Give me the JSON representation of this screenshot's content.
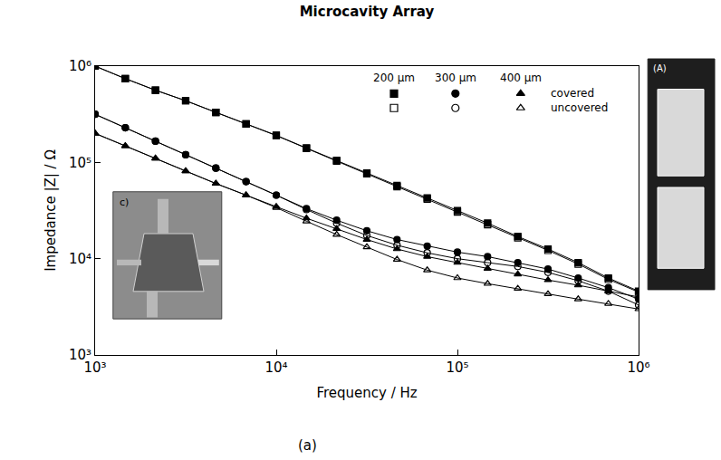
{
  "chart_data": {
    "type": "line",
    "title": "Microcavity Array",
    "x_label": "Frequency / Hz",
    "y_label": "Impedance |Z| / Ω",
    "caption": "(a)",
    "log": true,
    "grid": false,
    "legend": "upper right",
    "line_style": "solid",
    "xlim": [
      1000,
      1000000
    ],
    "ylim": [
      1000,
      1000000
    ],
    "xticks": [
      {
        "value": 1000,
        "label": "10³"
      },
      {
        "value": 10000,
        "label": "10⁴"
      },
      {
        "value": 100000,
        "label": "10⁵"
      },
      {
        "value": 1000000,
        "label": "10⁶"
      }
    ],
    "yticks": [
      {
        "value": 1000,
        "label": "10³"
      },
      {
        "value": 10000,
        "label": "10⁴"
      },
      {
        "value": 100000,
        "label": "10⁵"
      },
      {
        "value": 1000000,
        "label": "10⁶"
      }
    ],
    "x": [
      1000,
      1468,
      2154,
      3162,
      4642,
      6813,
      10000,
      14678,
      21544,
      31623,
      46416,
      68129,
      100000,
      146780,
      215440,
      316230,
      464160,
      681290,
      1000000
    ],
    "series": [
      {
        "group": "200 µm",
        "state": "covered",
        "marker": "square",
        "color": "#000000",
        "values": [
          1000000,
          741000,
          562000,
          437000,
          331000,
          251000,
          191000,
          141000,
          105000,
          77600,
          57500,
          42700,
          31600,
          23400,
          17000,
          12600,
          9100,
          6300,
          4600
        ]
      },
      {
        "group": "300 µm",
        "state": "covered",
        "marker": "circle",
        "color": "#000000",
        "values": [
          316000,
          229000,
          166000,
          120000,
          87100,
          63100,
          45700,
          33100,
          25100,
          19500,
          15800,
          13500,
          11700,
          10500,
          9100,
          7800,
          6300,
          5000,
          3800
        ]
      },
      {
        "group": "400 µm",
        "state": "covered",
        "marker": "triangle-up",
        "color": "#000000",
        "values": [
          200000,
          148000,
          110000,
          81300,
          60300,
          45700,
          34700,
          26300,
          20400,
          15800,
          12600,
          10500,
          9100,
          7900,
          6900,
          6000,
          5300,
          4600,
          4000
        ]
      },
      {
        "group": "200 µm",
        "state": "uncovered",
        "marker": "square-open",
        "color": "#000000",
        "values": [
          1000000,
          741000,
          562000,
          437000,
          331000,
          251000,
          190000,
          140000,
          103000,
          76000,
          56000,
          41500,
          30500,
          22500,
          16500,
          12200,
          8800,
          6100,
          4500
        ]
      },
      {
        "group": "300 µm",
        "state": "uncovered",
        "marker": "circle-open",
        "color": "#000000",
        "values": [
          316000,
          229000,
          166000,
          120000,
          87100,
          63100,
          45700,
          32400,
          23400,
          17400,
          13800,
          11500,
          10000,
          9100,
          8300,
          7200,
          5900,
          4600,
          3300
        ]
      },
      {
        "group": "400 µm",
        "state": "uncovered",
        "marker": "triangle-up-open",
        "color": "#000000",
        "values": [
          200000,
          148000,
          110000,
          81300,
          60300,
          45700,
          33900,
          24500,
          17800,
          13200,
          9800,
          7600,
          6300,
          5500,
          4900,
          4300,
          3800,
          3400,
          3000
        ]
      }
    ],
    "insets": [
      {
        "label": "c)"
      },
      {
        "label": "(A)"
      }
    ]
  }
}
